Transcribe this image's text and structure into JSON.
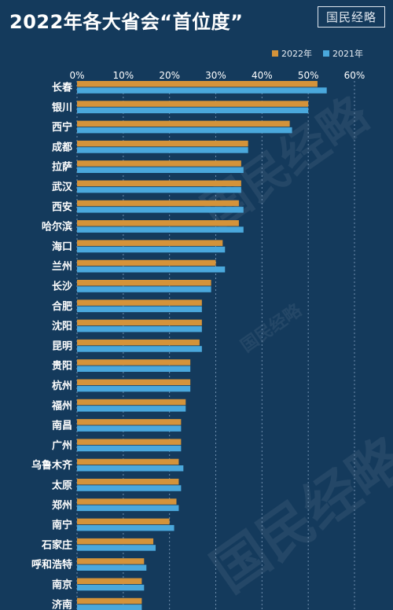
{
  "title": "2022年各大省会“首位度”",
  "logo": "国民经略",
  "watermark": "国民经略",
  "colors": {
    "series_2022": "#d4933a",
    "series_2021": "#4aa8dc",
    "background": "#143a5c"
  },
  "chart_data": {
    "type": "bar",
    "orientation": "horizontal",
    "x_ticks": [
      "0%",
      "10%",
      "20%",
      "30%",
      "40%",
      "50%",
      "60%"
    ],
    "xlim": [
      0,
      60
    ],
    "grid": true,
    "legend_position": "top-right",
    "categories": [
      "长春",
      "银川",
      "西宁",
      "成都",
      "拉萨",
      "武汉",
      "西安",
      "哈尔滨",
      "海口",
      "兰州",
      "长沙",
      "合肥",
      "沈阳",
      "昆明",
      "贵阳",
      "杭州",
      "福州",
      "南昌",
      "广州",
      "乌鲁木齐",
      "太原",
      "郑州",
      "南宁",
      "石家庄",
      "呼和浩特",
      "南京",
      "济南"
    ],
    "series": [
      {
        "name": "2022年",
        "values": [
          52,
          50,
          46,
          37,
          35.5,
          35.5,
          35,
          35,
          31.5,
          30,
          29,
          27,
          27,
          26.5,
          24.5,
          24.5,
          23.5,
          22.5,
          22.5,
          22,
          22,
          21.5,
          20,
          16.5,
          14.5,
          14,
          14
        ]
      },
      {
        "name": "2021年",
        "values": [
          54,
          50,
          46.5,
          37,
          36,
          35.5,
          36,
          36,
          32,
          32,
          29,
          27,
          27,
          27,
          24.5,
          24.5,
          23.5,
          22.5,
          22.5,
          23,
          22.5,
          22,
          21,
          17,
          15,
          14.5,
          14
        ]
      }
    ]
  }
}
